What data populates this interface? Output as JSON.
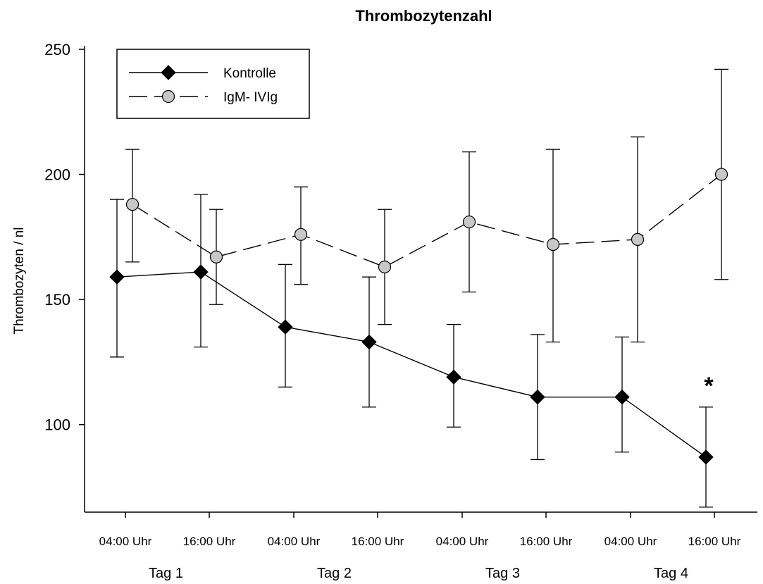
{
  "chart_data": {
    "type": "line",
    "title": "Thrombozytenzahl",
    "ylabel": "Thrombozyten / nl",
    "xlabel": "",
    "ylim": [
      65,
      250
    ],
    "yticks": [
      100,
      150,
      200,
      250
    ],
    "x_categories": [
      "04:00 Uhr",
      "16:00 Uhr",
      "04:00 Uhr",
      "16:00 Uhr",
      "04:00 Uhr",
      "16:00 Uhr",
      "04:00 Uhr",
      "16:00 Uhr"
    ],
    "day_groups": [
      "Tag 1",
      "Tag 2",
      "Tag 3",
      "Tag 4"
    ],
    "grid": false,
    "legend_position": "top-left",
    "series": [
      {
        "name": "Kontrolle",
        "marker": "diamond",
        "line_style": "solid",
        "color": "#000000",
        "values": [
          159,
          161,
          139,
          133,
          119,
          111,
          111,
          87
        ],
        "err_low": [
          127,
          131,
          115,
          107,
          99,
          86,
          89,
          67
        ],
        "err_high": [
          190,
          192,
          164,
          159,
          140,
          136,
          135,
          107
        ]
      },
      {
        "name": "IgM- IVIg",
        "marker": "circle",
        "line_style": "dashed",
        "color": "#c8c8c8",
        "values": [
          188,
          167,
          176,
          163,
          181,
          172,
          174,
          200
        ],
        "err_low": [
          165,
          148,
          156,
          140,
          153,
          133,
          133,
          158
        ],
        "err_high": [
          210,
          186,
          195,
          186,
          209,
          210,
          215,
          242
        ]
      }
    ],
    "annotations": [
      {
        "text": "*",
        "category_index": 7,
        "y": 118
      }
    ]
  }
}
